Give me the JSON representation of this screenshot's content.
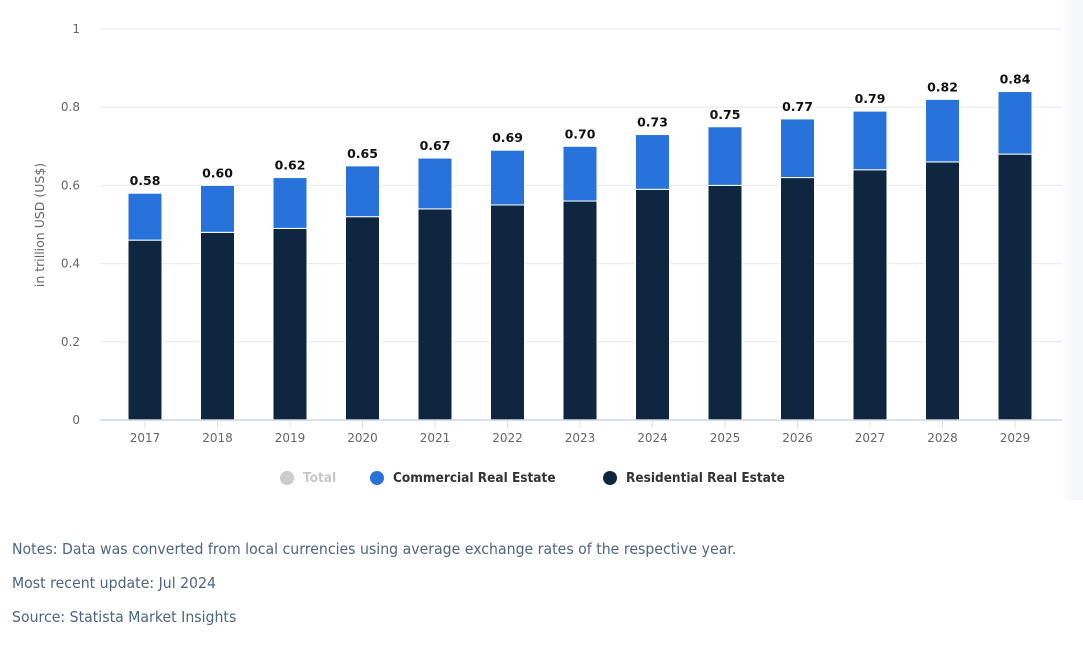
{
  "chart_data": {
    "type": "bar",
    "stacked": true,
    "title": "",
    "xlabel": "",
    "ylabel": "in trillion USD (US$)",
    "ylim": [
      0,
      1
    ],
    "yticks": [
      "0",
      "0.2",
      "0.4",
      "0.6",
      "0.8",
      "1"
    ],
    "ytick_values": [
      0,
      0.2,
      0.4,
      0.6,
      0.8,
      1
    ],
    "grid": true,
    "categories": [
      "2017",
      "2018",
      "2019",
      "2020",
      "2021",
      "2022",
      "2023",
      "2024",
      "2025",
      "2026",
      "2027",
      "2028",
      "2029"
    ],
    "series": [
      {
        "name": "Residential Real Estate",
        "color": "#0f2640",
        "values": [
          0.46,
          0.48,
          0.49,
          0.52,
          0.54,
          0.55,
          0.56,
          0.59,
          0.6,
          0.62,
          0.64,
          0.66,
          0.68
        ]
      },
      {
        "name": "Commercial Real Estate",
        "color": "#2873db",
        "values": [
          0.12,
          0.12,
          0.13,
          0.13,
          0.13,
          0.14,
          0.14,
          0.14,
          0.15,
          0.15,
          0.15,
          0.16,
          0.16
        ]
      }
    ],
    "totals": [
      0.58,
      0.6,
      0.62,
      0.65,
      0.67,
      0.69,
      0.7,
      0.73,
      0.75,
      0.77,
      0.79,
      0.82,
      0.84
    ],
    "total_labels": [
      "0.58",
      "0.60",
      "0.62",
      "0.65",
      "0.67",
      "0.69",
      "0.70",
      "0.73",
      "0.75",
      "0.77",
      "0.79",
      "0.82",
      "0.84"
    ],
    "legend": [
      {
        "name": "Total",
        "color": "#cccccc",
        "active": false
      },
      {
        "name": "Commercial Real Estate",
        "color": "#2873db",
        "active": true
      },
      {
        "name": "Residential Real Estate",
        "color": "#0f2640",
        "active": true
      }
    ],
    "legend_position": "bottom-center"
  },
  "notes": {
    "note": "Notes: Data was converted from local currencies using average exchange rates of the respective year.",
    "update": "Most recent update: Jul 2024",
    "source": "Source: Statista Market Insights"
  }
}
